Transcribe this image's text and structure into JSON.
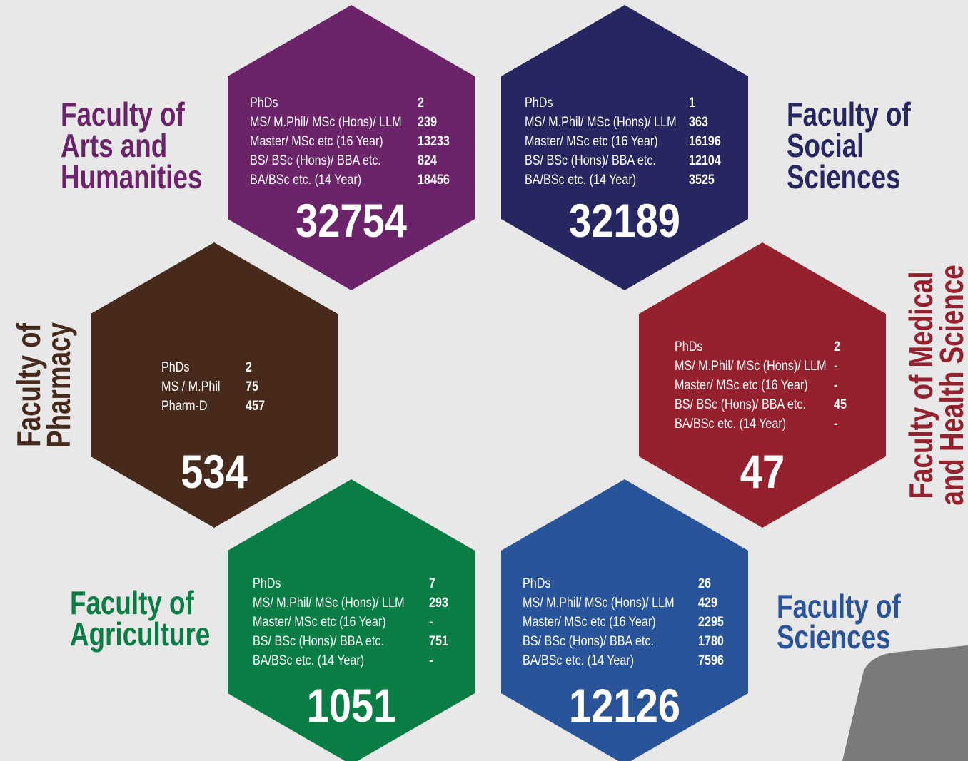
{
  "faculties": [
    {
      "name": [
        "Faculty of",
        "Arts and",
        "Humanities"
      ],
      "color": "#6b2469",
      "rows": [
        [
          "PhDs",
          2
        ],
        [
          "MS/ M.Phil/ MSc (Hons)/ LLM",
          239
        ],
        [
          "Master/ MSc etc (16 Year)",
          13233
        ],
        [
          "BS/ BSc (Hons)/ BBA etc.",
          824
        ],
        [
          "BA/BSc etc. (14 Year)",
          18456
        ]
      ],
      "total": 32754
    },
    {
      "name": [
        "Faculty of",
        "Social",
        "Sciences"
      ],
      "color": "#262660",
      "rows": [
        [
          "PhDs",
          1
        ],
        [
          "MS/ M.Phil/ MSc (Hons)/ LLM",
          363
        ],
        [
          "Master/ MSc etc (16 Year)",
          16196
        ],
        [
          "BS/ BSc (Hons)/ BBA etc.",
          12104
        ],
        [
          "BA/BSc etc. (14 Year)",
          3525
        ]
      ],
      "total": 32189
    },
    {
      "name": [
        "Faculty of",
        "Pharmacy"
      ],
      "color": "#472a1b",
      "rows": [
        [
          "PhDs",
          2
        ],
        [
          "MS / M.Phil",
          75
        ],
        [
          "Pharm-D",
          457
        ]
      ],
      "total": 534
    },
    {
      "name": [
        "Faculty of Medical",
        "and Health Science"
      ],
      "color": "#96212e",
      "rows": [
        [
          "PhDs",
          2
        ],
        [
          "MS/ M.Phil/ MSc (Hons)/ LLM",
          "-"
        ],
        [
          "Master/ MSc etc (16 Year)",
          "-"
        ],
        [
          "BS/ BSc (Hons)/ BBA etc.",
          45
        ],
        [
          "BA/BSc etc. (14 Year)",
          "-"
        ]
      ],
      "total": 47
    },
    {
      "name": [
        "Faculty of",
        "Agriculture"
      ],
      "color": "#0a7d45",
      "rows": [
        [
          "PhDs",
          7
        ],
        [
          "MS/ M.Phil/ MSc (Hons)/ LLM",
          293
        ],
        [
          "Master/ MSc etc (16 Year)",
          "-"
        ],
        [
          "BS/ BSc (Hons)/ BBA etc.",
          751
        ],
        [
          "BA/BSc etc. (14 Year)",
          "-"
        ]
      ],
      "total": 1051
    },
    {
      "name": [
        "Faculty of",
        "Sciences"
      ],
      "color": "#2a5499",
      "rows": [
        [
          "PhDs",
          26
        ],
        [
          "MS/ M.Phil/ MSc (Hons)/ LLM",
          429
        ],
        [
          "Master/ MSc etc (16 Year)",
          2295
        ],
        [
          "BS/ BSc (Hons)/ BBA etc.",
          1780
        ],
        [
          "BA/BSc etc. (14 Year)",
          7596
        ]
      ],
      "total": 12126
    }
  ]
}
